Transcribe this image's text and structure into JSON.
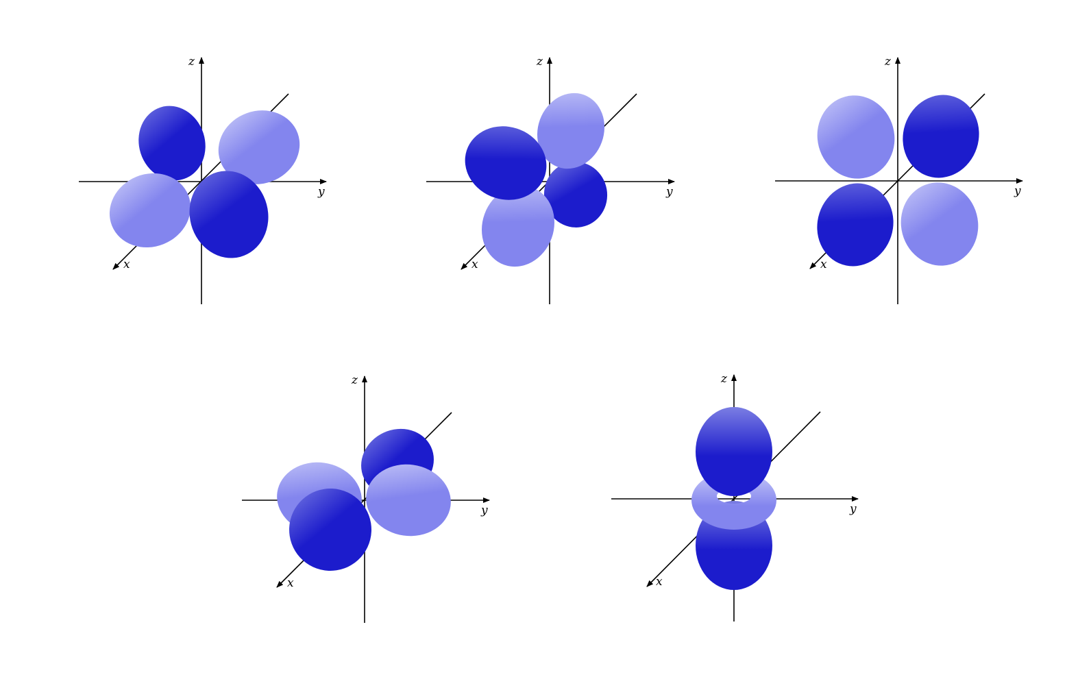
{
  "axis_labels": {
    "x": "x",
    "y": "y",
    "z": "z"
  },
  "colors": {
    "dark_lobe": [
      "#6c6fe0",
      "#1c1ccc"
    ],
    "light_lobe": [
      "#c3c5f7",
      "#8385ee"
    ],
    "axis": "#000000",
    "background": "#ffffff"
  },
  "orbitals": [
    {
      "id": "orbital-1",
      "shape": "four-lobe cloverleaf, diagonal"
    },
    {
      "id": "orbital-2",
      "shape": "four-lobe cloverleaf, tilted"
    },
    {
      "id": "orbital-3",
      "shape": "four-lobe cloverleaf, axis-aligned"
    },
    {
      "id": "orbital-4",
      "shape": "four-lobe cloverleaf, horizontal"
    },
    {
      "id": "orbital-5",
      "shape": "two lobes with torus"
    }
  ]
}
